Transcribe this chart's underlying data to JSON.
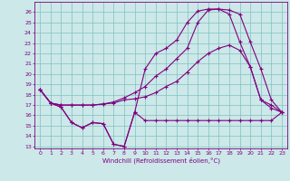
{
  "xlabel": "Windchill (Refroidissement éolien,°C)",
  "bg_color": "#cce8e8",
  "line_color": "#800080",
  "grid_color": "#80c0c0",
  "xlim": [
    -0.5,
    23.5
  ],
  "ylim": [
    12.8,
    27.0
  ],
  "xticks": [
    0,
    1,
    2,
    3,
    4,
    5,
    6,
    7,
    8,
    9,
    10,
    11,
    12,
    13,
    14,
    15,
    16,
    17,
    18,
    19,
    20,
    21,
    22,
    23
  ],
  "yticks": [
    13,
    14,
    15,
    16,
    17,
    18,
    19,
    20,
    21,
    22,
    23,
    24,
    25,
    26
  ],
  "line1_x": [
    0,
    1,
    2,
    3,
    4,
    5,
    6,
    7,
    8,
    9,
    10,
    11,
    12,
    13,
    14,
    15,
    16,
    17,
    18,
    19,
    20,
    21,
    22,
    23
  ],
  "line1_y": [
    18.5,
    17.2,
    16.8,
    15.3,
    14.8,
    15.3,
    15.2,
    13.2,
    13.0,
    16.3,
    15.5,
    15.5,
    15.5,
    15.5,
    15.5,
    15.5,
    15.5,
    15.5,
    15.5,
    15.5,
    15.5,
    15.5,
    15.5,
    16.3
  ],
  "line2_x": [
    0,
    1,
    2,
    3,
    4,
    5,
    6,
    7,
    8,
    9,
    10,
    11,
    12,
    13,
    14,
    15,
    16,
    17,
    18,
    19,
    20,
    21,
    22,
    23
  ],
  "line2_y": [
    18.5,
    17.2,
    17.0,
    17.0,
    17.0,
    17.0,
    17.1,
    17.2,
    17.5,
    17.6,
    17.8,
    18.2,
    18.8,
    19.3,
    20.2,
    21.2,
    22.0,
    22.5,
    22.8,
    22.3,
    20.7,
    17.5,
    16.7,
    16.3
  ],
  "line3_x": [
    0,
    1,
    2,
    3,
    4,
    5,
    6,
    7,
    8,
    9,
    10,
    11,
    12,
    13,
    14,
    15,
    16,
    17,
    18,
    19,
    20,
    21,
    22,
    23
  ],
  "line3_y": [
    18.5,
    17.2,
    17.0,
    17.0,
    17.0,
    17.0,
    17.1,
    17.3,
    17.7,
    18.2,
    18.8,
    19.8,
    20.5,
    21.5,
    22.5,
    25.0,
    26.2,
    26.3,
    26.2,
    25.8,
    23.1,
    20.5,
    17.5,
    16.3
  ],
  "line4_x": [
    0,
    1,
    2,
    3,
    4,
    5,
    6,
    7,
    8,
    9,
    10,
    11,
    12,
    13,
    14,
    15,
    16,
    17,
    18,
    19,
    20,
    21,
    22,
    23
  ],
  "line4_y": [
    18.5,
    17.2,
    16.8,
    15.3,
    14.8,
    15.3,
    15.2,
    13.2,
    13.0,
    16.3,
    20.5,
    22.0,
    22.5,
    23.3,
    25.0,
    26.1,
    26.3,
    26.3,
    25.8,
    23.1,
    20.7,
    17.5,
    17.0,
    16.3
  ]
}
